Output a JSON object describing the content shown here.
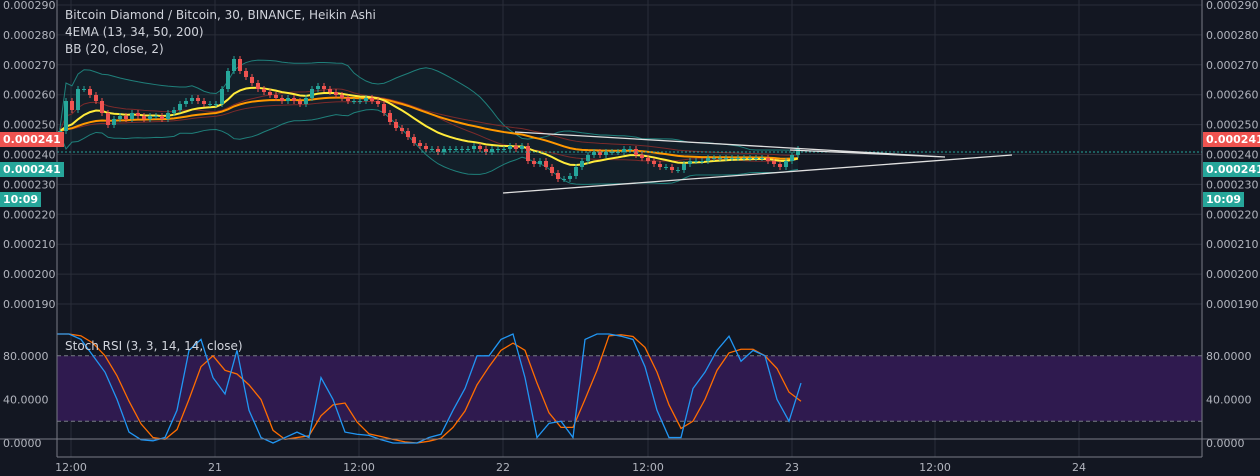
{
  "legend": {
    "title": "Bitcoin Diamond / Bitcoin, 30, BINANCE, Heikin Ashi",
    "ema": "4EMA (13, 34, 50, 200)",
    "bb": "BB (20, close, 2)",
    "stoch": "Stoch RSI (3, 3, 14, 14, close)"
  },
  "price_tags": {
    "last": "0.000241",
    "close": "0.000241",
    "countdown": "10:09"
  },
  "colors": {
    "background": "#131722",
    "up": "#26a69a",
    "down": "#ef5350",
    "ema_fast": "#ffeb3b",
    "ema_mid": "#ff9800",
    "ema_slow": "#7b2a2a",
    "bb": "#1f7f7a",
    "stoch_k": "#2196f3",
    "stoch_d": "#ff6d00",
    "stoch_band": "#2f1a4f"
  },
  "chart_data": [
    {
      "type": "candlestick",
      "style": "Heikin Ashi",
      "ylim": [
        0.000185,
        0.000292
      ],
      "y_ticks": [
        "0.000290",
        "0.000280",
        "0.000270",
        "0.000260",
        "0.000250",
        "0.000240",
        "0.000230",
        "0.000220",
        "0.000210",
        "0.000200",
        "0.000190"
      ],
      "x_ticks": [
        "12:00",
        "21",
        "12:00",
        "22",
        "12:00",
        "23",
        "12:00",
        "24"
      ],
      "interval": "30m",
      "close_e6": [
        248,
        258,
        255,
        262,
        262,
        260,
        258,
        254,
        250,
        252,
        253,
        252,
        254,
        253,
        252,
        253,
        253,
        252,
        254,
        255,
        257,
        258,
        259,
        258,
        257,
        257,
        257,
        262,
        268,
        272,
        268,
        266,
        264,
        262,
        261,
        260,
        259,
        258,
        259,
        258,
        257,
        259,
        262,
        263,
        262,
        261,
        260,
        259,
        258,
        258,
        258,
        259,
        258,
        257,
        254,
        251,
        249,
        248,
        246,
        244,
        243,
        242,
        242,
        241,
        242,
        242,
        242,
        242,
        242,
        243,
        242,
        241,
        242,
        242,
        242,
        243,
        242,
        243,
        238,
        237,
        238,
        236,
        234,
        232,
        232,
        233,
        236,
        238,
        240,
        241,
        240,
        241,
        241,
        241,
        242,
        242,
        240,
        239,
        238,
        237,
        236,
        236,
        235,
        235,
        237,
        238,
        238,
        238,
        239,
        239,
        239,
        239,
        239,
        239,
        239,
        239,
        239,
        239,
        238,
        237,
        236,
        238,
        240,
        242
      ],
      "last_price": 0.000241
    },
    {
      "type": "line",
      "name": "Stoch RSI (3, 3, 14, 14, close)",
      "ylim": [
        -5,
        105
      ],
      "y_ticks": [
        "80.0000",
        "40.0000",
        "0.0000"
      ],
      "band": [
        20,
        80
      ],
      "k": [
        100,
        100,
        95,
        80,
        65,
        40,
        10,
        3,
        2,
        5,
        30,
        85,
        95,
        60,
        45,
        85,
        30,
        5,
        0,
        5,
        10,
        5,
        60,
        40,
        10,
        8,
        7,
        3,
        0,
        0,
        0,
        5,
        8,
        30,
        50,
        80,
        80,
        95,
        100,
        60,
        5,
        18,
        20,
        5,
        95,
        100,
        100,
        98,
        95,
        70,
        30,
        5,
        5,
        50,
        65,
        85,
        98,
        75,
        85,
        80,
        40,
        20,
        55
      ]
    }
  ]
}
